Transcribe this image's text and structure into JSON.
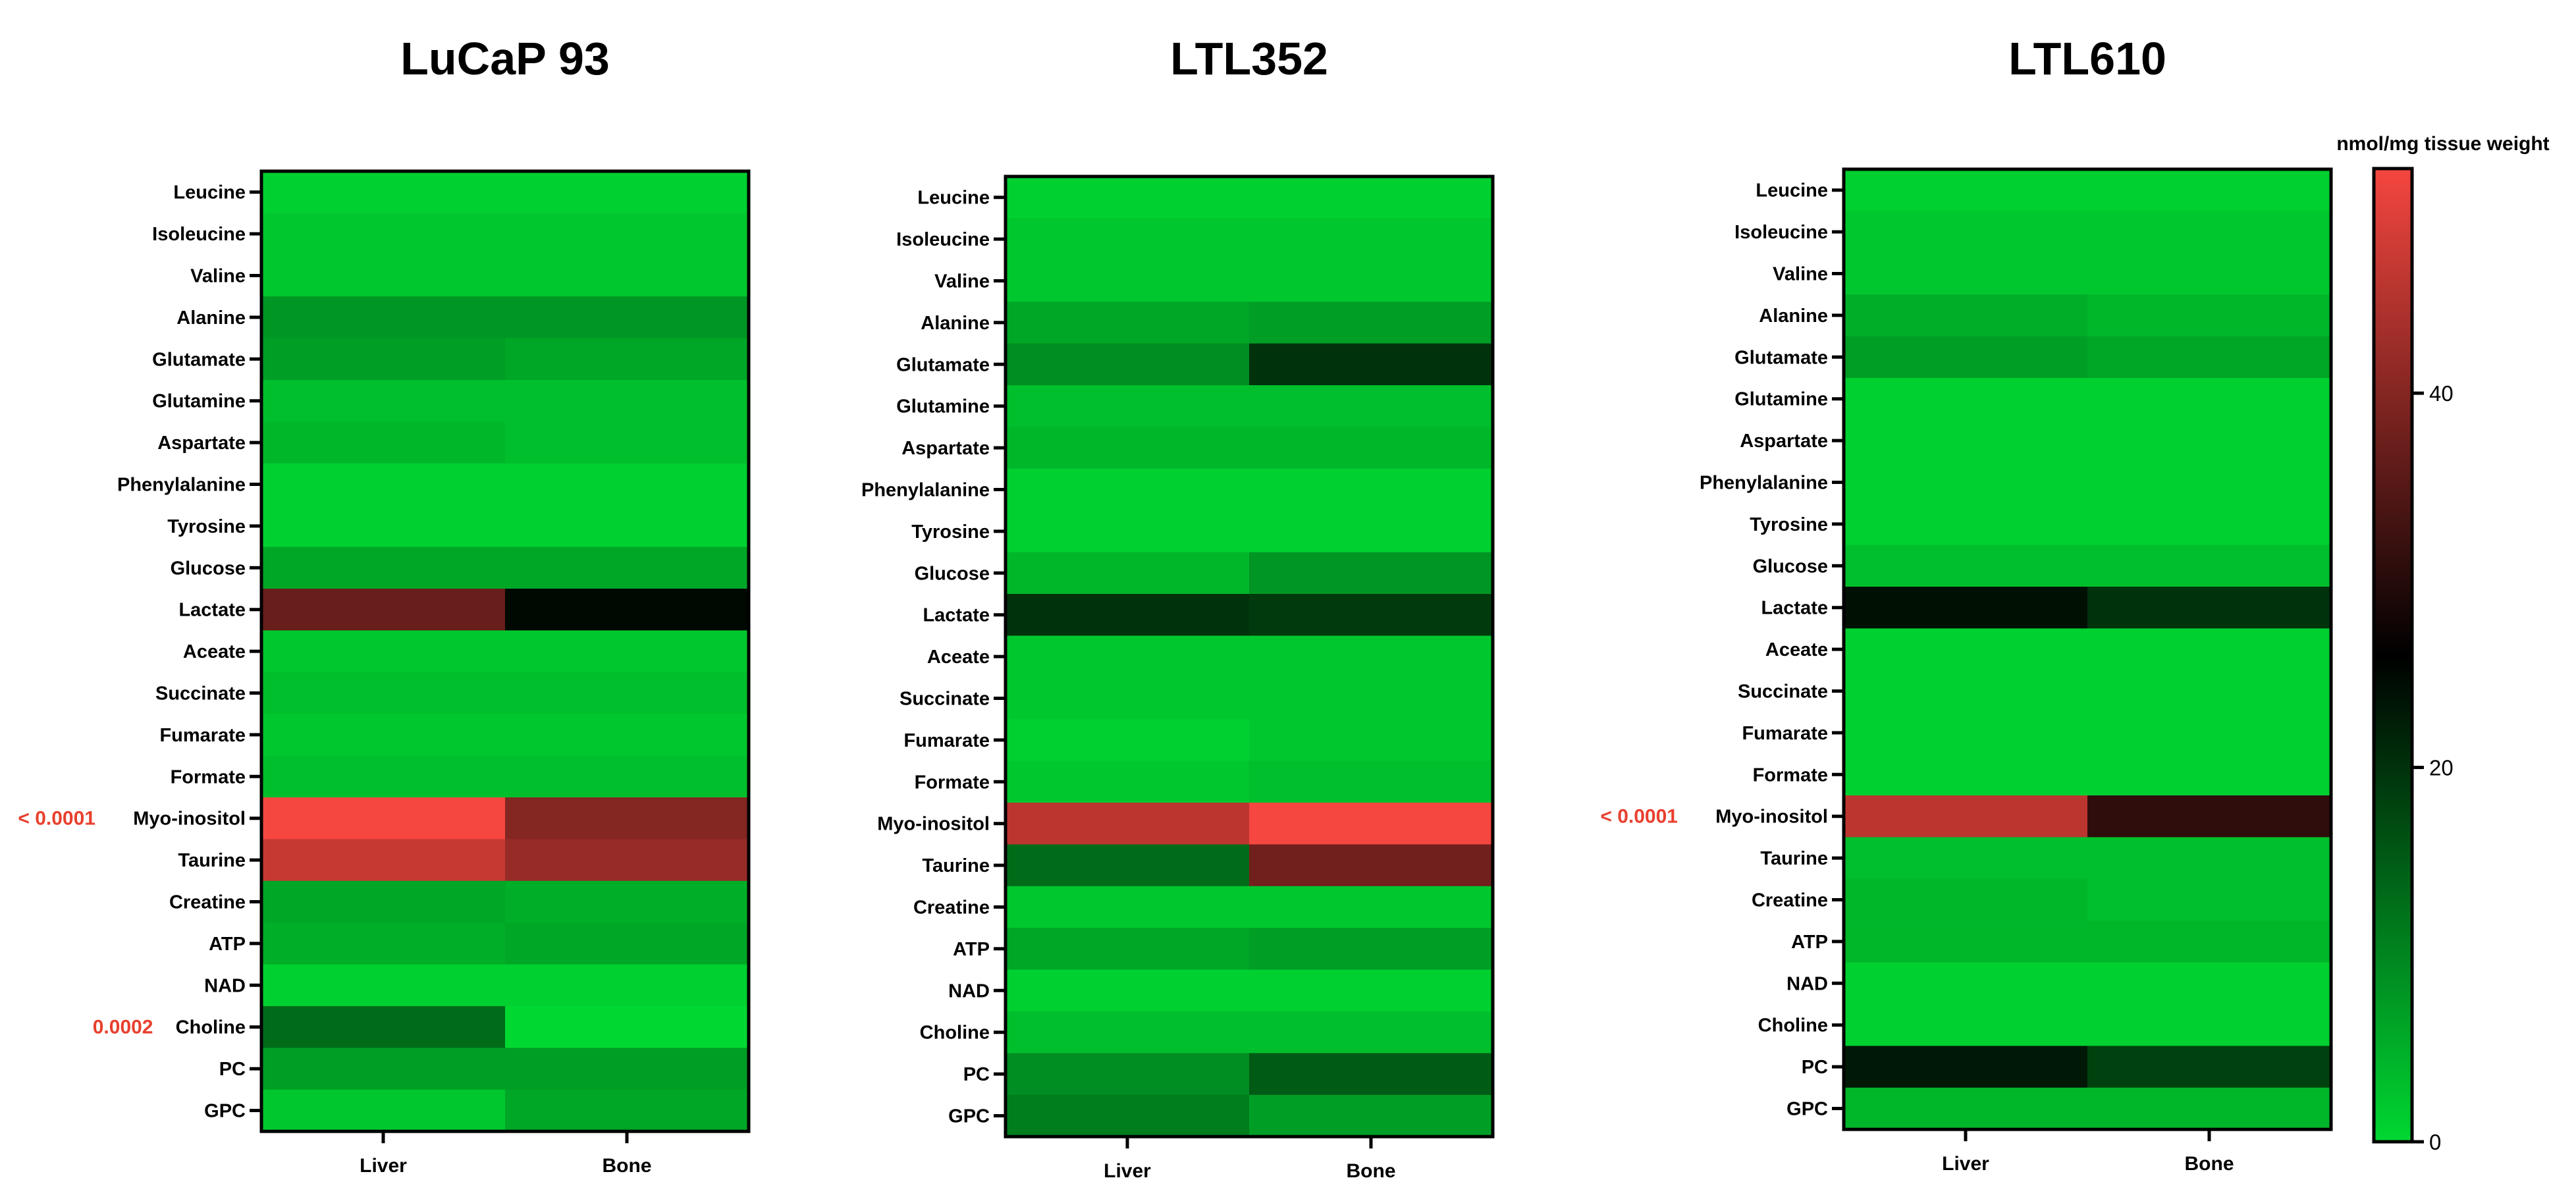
{
  "figure": {
    "colorbar": {
      "title": "nmol/mg tissue weight",
      "min": 0,
      "max": 52,
      "ticks": [
        0,
        20,
        40
      ],
      "colormap": [
        {
          "v": 0,
          "color": "#00d832"
        },
        {
          "v": 26,
          "color": "#000000"
        },
        {
          "v": 52,
          "color": "#f5463f"
        }
      ]
    }
  },
  "chart_data": [
    {
      "type": "heatmap",
      "title": "LuCaP 93",
      "columns": [
        "Liver",
        "Bone"
      ],
      "rows": [
        "Leucine",
        "Isoleucine",
        "Valine",
        "Alanine",
        "Glutamate",
        "Glutamine",
        "Aspartate",
        "Phenylalanine",
        "Tyrosine",
        "Glucose",
        "Lactate",
        "Aceate",
        "Succinate",
        "Fumarate",
        "Formate",
        "Myo-inositol",
        "Taurine",
        "Creatine",
        "ATP",
        "NAD",
        "Choline",
        "PC",
        "GPC"
      ],
      "values": [
        [
          1,
          1
        ],
        [
          2,
          2
        ],
        [
          2,
          2
        ],
        [
          8,
          8
        ],
        [
          7,
          6
        ],
        [
          3,
          3
        ],
        [
          4,
          3
        ],
        [
          1,
          1
        ],
        [
          1,
          1
        ],
        [
          6,
          6
        ],
        [
          37,
          25
        ],
        [
          2,
          2
        ],
        [
          3,
          3
        ],
        [
          2,
          2
        ],
        [
          3,
          3
        ],
        [
          52,
          40
        ],
        [
          47,
          42
        ],
        [
          6,
          5
        ],
        [
          5,
          6
        ],
        [
          1,
          1
        ],
        [
          13,
          0
        ],
        [
          7,
          7
        ],
        [
          2,
          6
        ]
      ],
      "annotations": [
        {
          "row": "Myo-inositol",
          "text": "< 0.0001"
        },
        {
          "row": "Choline",
          "text": "0.0002"
        }
      ]
    },
    {
      "type": "heatmap",
      "title": "LTL352",
      "columns": [
        "Liver",
        "Bone"
      ],
      "rows": [
        "Leucine",
        "Isoleucine",
        "Valine",
        "Alanine",
        "Glutamate",
        "Glutamine",
        "Aspartate",
        "Phenylalanine",
        "Tyrosine",
        "Glucose",
        "Lactate",
        "Aceate",
        "Succinate",
        "Fumarate",
        "Formate",
        "Myo-inositol",
        "Taurine",
        "Creatine",
        "ATP",
        "NAD",
        "Choline",
        "PC",
        "GPC"
      ],
      "values": [
        [
          1,
          1
        ],
        [
          2,
          2
        ],
        [
          2,
          2
        ],
        [
          6,
          7
        ],
        [
          9,
          20
        ],
        [
          3,
          3
        ],
        [
          4,
          4
        ],
        [
          1,
          1
        ],
        [
          1,
          1
        ],
        [
          4,
          8
        ],
        [
          20,
          19
        ],
        [
          2,
          2
        ],
        [
          2,
          2
        ],
        [
          1,
          2
        ],
        [
          2,
          3
        ],
        [
          46,
          52
        ],
        [
          13,
          38
        ],
        [
          2,
          2
        ],
        [
          6,
          7
        ],
        [
          1,
          1
        ],
        [
          3,
          3
        ],
        [
          9,
          15
        ],
        [
          11,
          7
        ]
      ],
      "annotations": []
    },
    {
      "type": "heatmap",
      "title": "LTL610",
      "columns": [
        "Liver",
        "Bone"
      ],
      "rows": [
        "Leucine",
        "Isoleucine",
        "Valine",
        "Alanine",
        "Glutamate",
        "Glutamine",
        "Aspartate",
        "Phenylalanine",
        "Tyrosine",
        "Glucose",
        "Lactate",
        "Aceate",
        "Succinate",
        "Fumarate",
        "Formate",
        "Myo-inositol",
        "Taurine",
        "Creatine",
        "ATP",
        "NAD",
        "Choline",
        "PC",
        "GPC"
      ],
      "values": [
        [
          1,
          1
        ],
        [
          2,
          2
        ],
        [
          2,
          2
        ],
        [
          5,
          4
        ],
        [
          7,
          6
        ],
        [
          1,
          1
        ],
        [
          1,
          1
        ],
        [
          1,
          1
        ],
        [
          1,
          1
        ],
        [
          3,
          3
        ],
        [
          24,
          20
        ],
        [
          1,
          1
        ],
        [
          1,
          1
        ],
        [
          1,
          1
        ],
        [
          1,
          1
        ],
        [
          46,
          31
        ],
        [
          3,
          3
        ],
        [
          4,
          3
        ],
        [
          4,
          4
        ],
        [
          1,
          1
        ],
        [
          1,
          1
        ],
        [
          23,
          18
        ],
        [
          4,
          4
        ]
      ],
      "annotations": [
        {
          "row": "Myo-inositol",
          "text": "< 0.0001"
        }
      ]
    }
  ]
}
